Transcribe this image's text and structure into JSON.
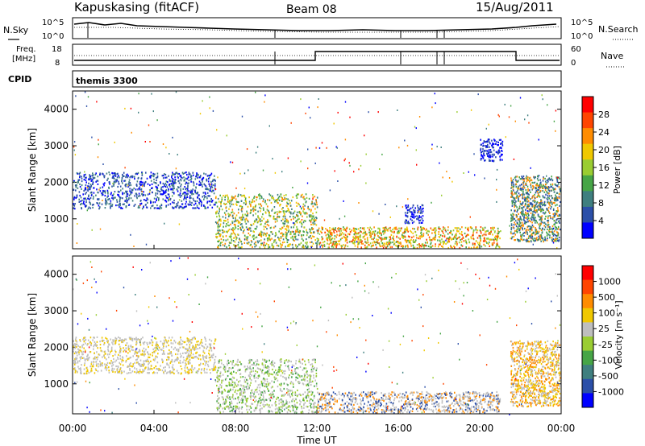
{
  "header": {
    "station": "Kapuskasing (fitACF)",
    "beam": "Beam 08",
    "date": "15/Aug/2011"
  },
  "top_panels": {
    "nsky_label": "N.Sky",
    "nsky_ticks": [
      "10^5",
      "10^0"
    ],
    "nsearch_label": "N.Search",
    "nsearch_ticks": [
      "10^5",
      "10^0"
    ],
    "freq_label_line1": "Freq.",
    "freq_label_line2": "[MHz]",
    "freq_ticks": [
      "18",
      "8"
    ],
    "nave_label": "Nave",
    "nave_ticks": [
      "60",
      "0"
    ],
    "cpid_label": "CPID",
    "cpid_value": "themis 3300"
  },
  "chart_data": [
    {
      "type": "heatmap",
      "name": "power-panel",
      "ylabel": "Slant Range [km]",
      "y_ticks": [
        "4000",
        "3000",
        "2000",
        "1000"
      ],
      "ylim": [
        180,
        4500
      ],
      "colorbar_label": "Power [dB]",
      "colorbar_ticks": [
        "28",
        "24",
        "20",
        "16",
        "12",
        "8",
        "4"
      ],
      "colorbar_colors": [
        "#0000ff",
        "#2b4fa8",
        "#3f7f7f",
        "#46a546",
        "#9acd32",
        "#f0c800",
        "#ff8c00",
        "#ff4500",
        "#ff0000"
      ],
      "scatter_regions": [
        {
          "t0": 0.0,
          "t1": 7.0,
          "r0": 1300,
          "r1": 2300,
          "colors": [
            "#2b4fa8",
            "#0000ff",
            "#3f7f7f"
          ]
        },
        {
          "t0": 7.0,
          "t1": 12.0,
          "r0": 180,
          "r1": 1700,
          "colors": [
            "#46a546",
            "#9acd32",
            "#f0c800",
            "#ff8c00",
            "#3f7f7f"
          ]
        },
        {
          "t0": 12.0,
          "t1": 21.0,
          "r0": 180,
          "r1": 800,
          "colors": [
            "#ff8c00",
            "#f0c800",
            "#46a546",
            "#ff4500",
            "#9acd32"
          ]
        },
        {
          "t0": 16.3,
          "t1": 17.2,
          "r0": 900,
          "r1": 1400,
          "colors": [
            "#0000ff",
            "#2b4fa8"
          ]
        },
        {
          "t0": 20.0,
          "t1": 21.1,
          "r0": 2600,
          "r1": 3200,
          "colors": [
            "#0000ff",
            "#2b4fa8"
          ]
        },
        {
          "t0": 21.5,
          "t1": 24.0,
          "r0": 400,
          "r1": 2200,
          "colors": [
            "#3f7f7f",
            "#46a546",
            "#2b4fa8",
            "#ff8c00"
          ]
        }
      ]
    },
    {
      "type": "heatmap",
      "name": "velocity-panel",
      "ylabel": "Slant Range [km]",
      "y_ticks": [
        "4000",
        "3000",
        "2000",
        "1000"
      ],
      "ylim": [
        180,
        4500
      ],
      "colorbar_label": "Velocity [m s⁻¹]",
      "colorbar_ticks": [
        "1000",
        "500",
        "100",
        "25",
        "-25",
        "-100",
        "-500",
        "-1000"
      ],
      "colorbar_colors": [
        "#0000ff",
        "#2b4fa8",
        "#3f7f7f",
        "#46a546",
        "#9acd32",
        "#bebebe",
        "#f0c800",
        "#ff8c00",
        "#ff4500",
        "#ff0000"
      ],
      "scatter_regions": [
        {
          "t0": 0.0,
          "t1": 7.0,
          "r0": 1300,
          "r1": 2300,
          "colors": [
            "#bebebe",
            "#bebebe",
            "#f0c800"
          ]
        },
        {
          "t0": 7.0,
          "t1": 12.0,
          "r0": 180,
          "r1": 1700,
          "colors": [
            "#bebebe",
            "#9acd32",
            "#46a546",
            "#bebebe"
          ]
        },
        {
          "t0": 12.0,
          "t1": 21.0,
          "r0": 180,
          "r1": 800,
          "colors": [
            "#bebebe",
            "#bebebe",
            "#ff8c00",
            "#2b4fa8"
          ]
        },
        {
          "t0": 21.5,
          "t1": 24.0,
          "r0": 400,
          "r1": 2200,
          "colors": [
            "#ff8c00",
            "#f0c800",
            "#bebebe"
          ]
        }
      ]
    }
  ],
  "time_axis": {
    "ticks": [
      "00:00",
      "04:00",
      "08:00",
      "12:00",
      "16:00",
      "20:00",
      "00:00"
    ],
    "label": "Time UT"
  }
}
